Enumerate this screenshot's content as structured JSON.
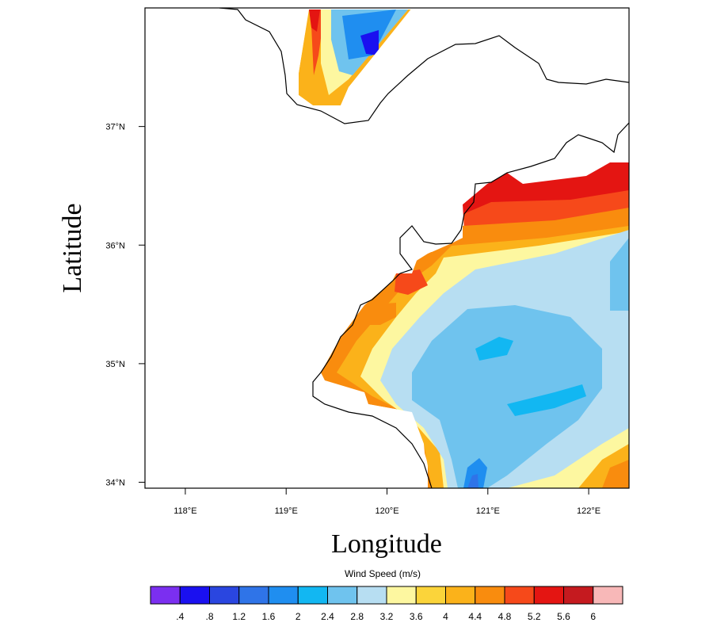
{
  "chart_data": {
    "type": "heatmap",
    "xlabel": "Longitude",
    "ylabel": "Latitude",
    "x_ticks": [
      "118°E",
      "119°E",
      "120°E",
      "121°E",
      "122°E"
    ],
    "y_ticks": [
      "34°N",
      "35°N",
      "36°N",
      "37°N"
    ],
    "xlim": [
      117.6,
      122.4
    ],
    "ylim": [
      33.95,
      38.0
    ],
    "colorbar": {
      "title": "Wind Speed  (m/s)",
      "levels": [
        ".4",
        ".8",
        "1.2",
        "1.6",
        "2",
        "2.4",
        "2.8",
        "3.2",
        "3.6",
        "4",
        "4.4",
        "4.8",
        "5.2",
        "5.6",
        "6"
      ],
      "colors": [
        "#7b2ff0",
        "#1a10f0",
        "#2a46e0",
        "#2f74e8",
        "#1f8ef0",
        "#12b7f2",
        "#6fc3ee",
        "#b7def2",
        "#fdf7a0",
        "#fbd43a",
        "#fbb21a",
        "#f98c0e",
        "#f6491a",
        "#e41512",
        "#c51a1f",
        "#f8b8b8"
      ]
    }
  }
}
